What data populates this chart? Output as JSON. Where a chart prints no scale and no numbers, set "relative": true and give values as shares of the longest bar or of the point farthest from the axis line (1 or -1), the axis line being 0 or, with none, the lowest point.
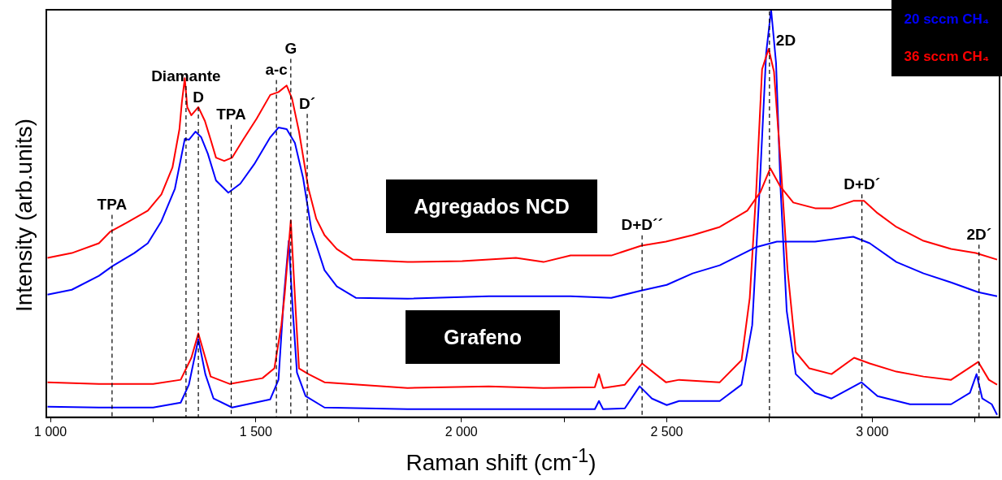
{
  "chart_data": {
    "type": "line",
    "xlabel": "Raman shift (cm$^{-1}$)",
    "ylabel": "Intensity (arb.units)",
    "relative": true,
    "marker": "none",
    "line_style": "solid",
    "legend": "top right",
    "xlim": [
      990,
      3310
    ],
    "xticks": [
      {
        "value": 1000,
        "label": "1 000"
      },
      {
        "value": 1250,
        "label": null
      },
      {
        "value": 1500,
        "label": "1 500"
      },
      {
        "value": 1750,
        "label": null
      },
      {
        "value": 2000,
        "label": "2 000"
      },
      {
        "value": 2250,
        "label": null
      },
      {
        "value": 2500,
        "label": "2 500"
      },
      {
        "value": 2750,
        "label": null
      },
      {
        "value": 3000,
        "label": "3 000"
      },
      {
        "value": 3250,
        "label": null
      }
    ],
    "series": [
      {
        "name": "36 sccm CH₄",
        "color": "#ff0000",
        "x": [
          993,
          1052,
          1118,
          1145,
          1185,
          1237,
          1270,
          1297,
          1314,
          1320,
          1327,
          1333,
          1343,
          1360,
          1376,
          1390,
          1403,
          1423,
          1442,
          1469,
          1502,
          1535,
          1555,
          1575,
          1588,
          1605,
          1628,
          1647,
          1667,
          1697,
          1736,
          1869,
          2002,
          2133,
          2200,
          2266,
          2365,
          2438,
          2498,
          2563,
          2629,
          2696,
          2728,
          2752,
          2776,
          2808,
          2861,
          2901,
          2954,
          2980,
          3013,
          3059,
          3125,
          3192,
          3252,
          3304
        ],
        "values": [
          0.391,
          0.403,
          0.427,
          0.455,
          0.477,
          0.507,
          0.547,
          0.613,
          0.707,
          0.774,
          0.832,
          0.761,
          0.741,
          0.761,
          0.727,
          0.681,
          0.637,
          0.629,
          0.637,
          0.681,
          0.733,
          0.791,
          0.798,
          0.814,
          0.782,
          0.701,
          0.561,
          0.487,
          0.447,
          0.413,
          0.387,
          0.381,
          0.383,
          0.391,
          0.381,
          0.397,
          0.397,
          0.421,
          0.431,
          0.447,
          0.467,
          0.507,
          0.553,
          0.611,
          0.567,
          0.527,
          0.513,
          0.513,
          0.531,
          0.531,
          0.501,
          0.467,
          0.433,
          0.413,
          0.403,
          0.387
        ]
      },
      {
        "name": "20 sccm CH₄",
        "color": "#0000ff",
        "x": [
          993,
          1052,
          1118,
          1151,
          1204,
          1237,
          1270,
          1303,
          1327,
          1337,
          1353,
          1367,
          1383,
          1403,
          1433,
          1462,
          1496,
          1535,
          1555,
          1575,
          1595,
          1615,
          1635,
          1667,
          1697,
          1744,
          1869,
          2067,
          2266,
          2365,
          2438,
          2500,
          2563,
          2629,
          2716,
          2768,
          2861,
          2954,
          2994,
          3059,
          3125,
          3192,
          3258,
          3304
        ],
        "values": [
          0.301,
          0.313,
          0.347,
          0.371,
          0.403,
          0.427,
          0.481,
          0.561,
          0.683,
          0.681,
          0.701,
          0.687,
          0.647,
          0.581,
          0.551,
          0.573,
          0.621,
          0.687,
          0.711,
          0.707,
          0.673,
          0.587,
          0.461,
          0.361,
          0.321,
          0.293,
          0.291,
          0.297,
          0.297,
          0.293,
          0.311,
          0.325,
          0.353,
          0.373,
          0.417,
          0.431,
          0.431,
          0.443,
          0.427,
          0.381,
          0.353,
          0.331,
          0.307,
          0.297
        ]
      },
      {
        "color": "#ff0000",
        "x": [
          993,
          1118,
          1250,
          1317,
          1343,
          1360,
          1373,
          1390,
          1436,
          1516,
          1545,
          1562,
          1570,
          1585,
          1597,
          1605,
          1628,
          1667,
          1869,
          2067,
          2200,
          2325,
          2335,
          2345,
          2398,
          2440,
          2498,
          2530,
          2629,
          2682,
          2702,
          2718,
          2732,
          2748,
          2761,
          2777,
          2794,
          2814,
          2847,
          2901,
          2956,
          2994,
          3059,
          3125,
          3192,
          3258,
          3284,
          3304
        ],
        "values": [
          0.086,
          0.082,
          0.082,
          0.092,
          0.146,
          0.206,
          0.16,
          0.1,
          0.082,
          0.096,
          0.12,
          0.226,
          0.3,
          0.483,
          0.26,
          0.12,
          0.106,
          0.086,
          0.072,
          0.076,
          0.072,
          0.074,
          0.106,
          0.072,
          0.08,
          0.132,
          0.086,
          0.092,
          0.086,
          0.14,
          0.293,
          0.561,
          0.854,
          0.904,
          0.848,
          0.627,
          0.361,
          0.16,
          0.12,
          0.106,
          0.146,
          0.132,
          0.112,
          0.1,
          0.092,
          0.136,
          0.092,
          0.08
        ]
      },
      {
        "color": "#0000ff",
        "x": [
          993,
          1118,
          1250,
          1317,
          1337,
          1360,
          1377,
          1397,
          1442,
          1535,
          1555,
          1568,
          1580,
          1590,
          1600,
          1621,
          1667,
          1869,
          2067,
          2266,
          2325,
          2335,
          2345,
          2398,
          2434,
          2464,
          2500,
          2530,
          2629,
          2682,
          2708,
          2726,
          2742,
          2754,
          2766,
          2777,
          2792,
          2814,
          2861,
          2901,
          2974,
          3013,
          3092,
          3192,
          3238,
          3254,
          3268,
          3291,
          3304
        ],
        "values": [
          0.026,
          0.024,
          0.024,
          0.036,
          0.08,
          0.192,
          0.106,
          0.046,
          0.024,
          0.044,
          0.092,
          0.293,
          0.433,
          0.26,
          0.11,
          0.052,
          0.024,
          0.02,
          0.02,
          0.02,
          0.02,
          0.04,
          0.02,
          0.022,
          0.076,
          0.046,
          0.03,
          0.04,
          0.04,
          0.08,
          0.226,
          0.561,
          0.894,
          1,
          0.87,
          0.561,
          0.261,
          0.106,
          0.06,
          0.046,
          0.086,
          0.052,
          0.032,
          0.032,
          0.06,
          0.106,
          0.046,
          0.032,
          0.006
        ]
      }
    ],
    "ref_lines": [
      {
        "axis": "x",
        "value": 1150,
        "label": "TPA",
        "line_style": "dashed",
        "color": "#000000"
      },
      {
        "axis": "x",
        "value": 1330,
        "label": "Diamante",
        "line_style": "dashed",
        "color": "#000000"
      },
      {
        "axis": "x",
        "value": 1360,
        "label": "D",
        "line_style": "dashed",
        "color": "#000000"
      },
      {
        "axis": "x",
        "value": 1440,
        "label": "TPA",
        "line_style": "dashed",
        "color": "#000000"
      },
      {
        "axis": "x",
        "value": 1550,
        "label": "a-c",
        "line_style": "dashed",
        "color": "#000000"
      },
      {
        "axis": "x",
        "value": 1585,
        "label": "G",
        "line_style": "dashed",
        "color": "#000000"
      },
      {
        "axis": "x",
        "value": 1625,
        "label": "D´",
        "line_style": "dashed",
        "color": "#000000"
      },
      {
        "axis": "x",
        "value": 2440,
        "label": "D+D´´",
        "line_style": "dashed",
        "color": "#000000"
      },
      {
        "axis": "x",
        "value": 2750,
        "label": "2D",
        "line_style": "dashed",
        "color": "#000000"
      },
      {
        "axis": "x",
        "value": 2975,
        "label": "D+D´",
        "line_style": "dashed",
        "color": "#000000"
      },
      {
        "axis": "x",
        "value": 3260,
        "label": "2D´",
        "line_style": "dashed",
        "color": "#000000"
      }
    ],
    "annotations": [
      "Agregados NCD",
      "Grafeno"
    ]
  }
}
